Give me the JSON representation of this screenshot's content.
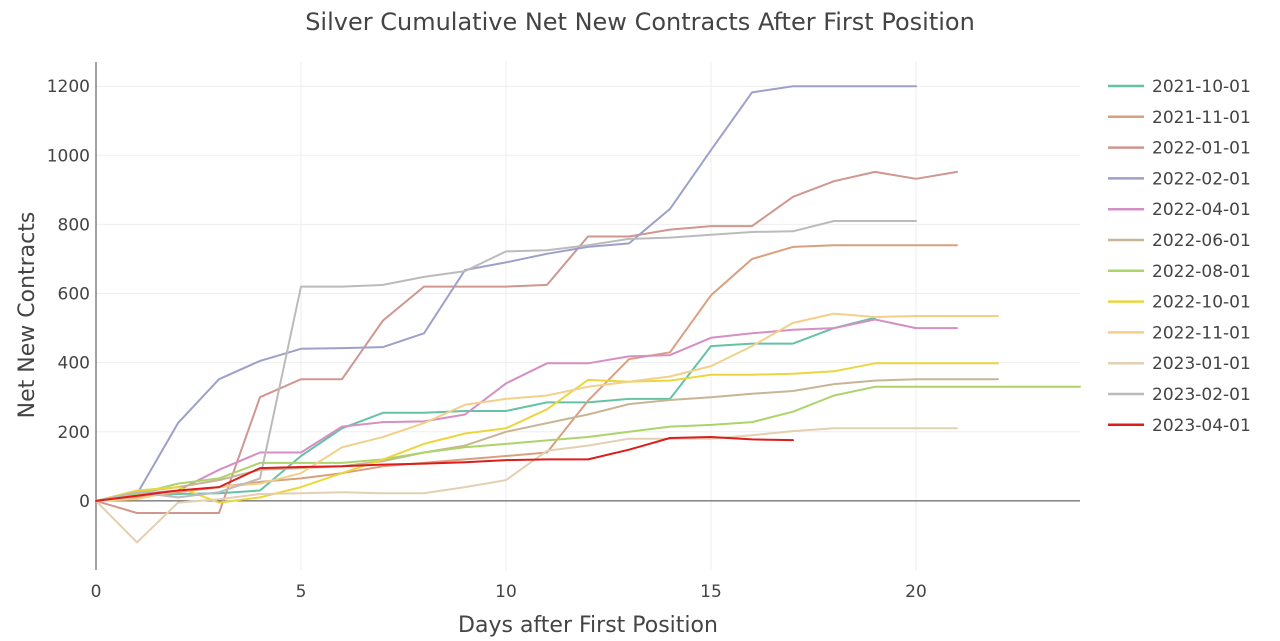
{
  "chart_data": {
    "type": "line",
    "title": "Silver Cumulative Net New Contracts After First Position",
    "xlabel": "Days after First Position",
    "ylabel": "Net New Contracts",
    "xlim": [
      0,
      24
    ],
    "ylim": [
      -200,
      1270
    ],
    "xticks": [
      0,
      5,
      10,
      15,
      20
    ],
    "yticks": [
      0,
      200,
      400,
      600,
      800,
      1000,
      1200
    ],
    "grid": true,
    "legend_position": "right",
    "series": [
      {
        "name": "2021-10-01",
        "color": "#66c2a5",
        "x": [
          0,
          1,
          2,
          3,
          4,
          5,
          6,
          7,
          8,
          9,
          10,
          11,
          12,
          13,
          14,
          15,
          16,
          17,
          18,
          19
        ],
        "values": [
          0,
          15,
          20,
          22,
          30,
          130,
          210,
          255,
          255,
          260,
          260,
          285,
          285,
          295,
          295,
          448,
          455,
          455,
          500,
          530
        ]
      },
      {
        "name": "2021-11-01",
        "color": "#d9a07f",
        "x": [
          0,
          1,
          2,
          3,
          4,
          5,
          6,
          7,
          8,
          9,
          10,
          11,
          12,
          13,
          14,
          15,
          16,
          17,
          18,
          19,
          20,
          21
        ],
        "values": [
          0,
          10,
          25,
          40,
          55,
          65,
          80,
          100,
          110,
          120,
          130,
          140,
          290,
          410,
          430,
          595,
          700,
          735,
          740,
          740,
          740,
          740
        ]
      },
      {
        "name": "2022-01-01",
        "color": "#d0968f",
        "x": [
          0,
          1,
          2,
          3,
          4,
          5,
          6,
          7,
          8,
          9,
          10,
          11,
          12,
          13,
          14,
          15,
          16,
          17,
          18,
          19,
          20,
          21
        ],
        "values": [
          0,
          -35,
          -35,
          -35,
          300,
          352,
          352,
          522,
          620,
          620,
          620,
          625,
          765,
          765,
          785,
          795,
          795,
          880,
          925,
          952,
          932,
          952
        ]
      },
      {
        "name": "2022-02-01",
        "color": "#9da0c9",
        "x": [
          0,
          1,
          2,
          3,
          4,
          5,
          6,
          7,
          8,
          9,
          10,
          11,
          12,
          13,
          14,
          15,
          16,
          17,
          18,
          19,
          20
        ],
        "values": [
          0,
          20,
          225,
          352,
          405,
          440,
          442,
          445,
          485,
          668,
          690,
          715,
          735,
          745,
          845,
          1015,
          1182,
          1200,
          1200,
          1200,
          1200
        ]
      },
      {
        "name": "2022-04-01",
        "color": "#d48fc4",
        "x": [
          0,
          1,
          2,
          3,
          4,
          5,
          6,
          7,
          8,
          9,
          10,
          11,
          12,
          13,
          14,
          15,
          16,
          17,
          18,
          19,
          20,
          21
        ],
        "values": [
          0,
          20,
          30,
          90,
          140,
          140,
          215,
          228,
          230,
          250,
          340,
          398,
          398,
          418,
          422,
          472,
          485,
          495,
          500,
          525,
          500,
          500
        ]
      },
      {
        "name": "2022-06-01",
        "color": "#c8b594",
        "x": [
          0,
          1,
          2,
          3,
          4,
          5,
          6,
          7,
          8,
          9,
          10,
          11,
          12,
          13,
          14,
          15,
          16,
          17,
          18,
          19,
          20,
          21,
          22
        ],
        "values": [
          0,
          25,
          40,
          60,
          90,
          95,
          100,
          115,
          140,
          160,
          200,
          225,
          250,
          280,
          292,
          300,
          310,
          318,
          338,
          348,
          352,
          352,
          352
        ]
      },
      {
        "name": "2022-08-01",
        "color": "#abd46a",
        "x": [
          0,
          1,
          2,
          3,
          4,
          5,
          6,
          7,
          8,
          9,
          10,
          11,
          12,
          13,
          14,
          15,
          16,
          17,
          18,
          19,
          20,
          21,
          22,
          23,
          24
        ],
        "values": [
          0,
          20,
          50,
          65,
          110,
          110,
          110,
          120,
          140,
          155,
          165,
          175,
          185,
          200,
          215,
          220,
          228,
          258,
          305,
          330,
          330,
          330,
          330,
          330,
          330
        ]
      },
      {
        "name": "2022-10-01",
        "color": "#ecd63e",
        "x": [
          0,
          1,
          2,
          3,
          4,
          5,
          6,
          7,
          8,
          9,
          10,
          11,
          12,
          13,
          14,
          15,
          16,
          17,
          18,
          19,
          20,
          21,
          22
        ],
        "values": [
          0,
          30,
          40,
          -5,
          10,
          40,
          80,
          120,
          165,
          195,
          210,
          265,
          350,
          345,
          348,
          365,
          365,
          368,
          375,
          398,
          398,
          398,
          398
        ]
      },
      {
        "name": "2022-11-01",
        "color": "#f2d08a",
        "x": [
          0,
          1,
          2,
          3,
          4,
          5,
          6,
          7,
          8,
          9,
          10,
          11,
          12,
          13,
          14,
          15,
          16,
          17,
          18,
          19,
          20,
          21,
          22
        ],
        "values": [
          0,
          5,
          30,
          40,
          50,
          80,
          155,
          185,
          225,
          278,
          295,
          305,
          330,
          345,
          360,
          390,
          448,
          515,
          542,
          532,
          535,
          535,
          535
        ]
      },
      {
        "name": "2023-01-01",
        "color": "#e3cfb2",
        "x": [
          0,
          1,
          2,
          3,
          4,
          5,
          6,
          7,
          8,
          9,
          10,
          11,
          12,
          13,
          14,
          15,
          16,
          17,
          18,
          19,
          20,
          21
        ],
        "values": [
          0,
          -120,
          -5,
          5,
          20,
          22,
          25,
          22,
          22,
          40,
          60,
          145,
          160,
          180,
          180,
          180,
          190,
          202,
          210,
          210,
          210,
          210
        ]
      },
      {
        "name": "2023-02-01",
        "color": "#bbbbbb",
        "x": [
          0,
          1,
          2,
          3,
          4,
          5,
          6,
          7,
          8,
          9,
          10,
          11,
          12,
          13,
          14,
          15,
          16,
          17,
          18,
          19,
          20
        ],
        "values": [
          0,
          25,
          10,
          25,
          65,
          620,
          620,
          625,
          648,
          665,
          722,
          725,
          740,
          758,
          762,
          770,
          778,
          780,
          810,
          810,
          810
        ]
      },
      {
        "name": "2023-04-01",
        "color": "#dd1c1c",
        "x": [
          0,
          1,
          2,
          3,
          4,
          5,
          6,
          7,
          8,
          9,
          10,
          11,
          12,
          13,
          14,
          15,
          16,
          17
        ],
        "values": [
          0,
          15,
          30,
          40,
          95,
          98,
          100,
          105,
          108,
          112,
          118,
          120,
          120,
          148,
          182,
          185,
          178,
          176
        ]
      }
    ]
  }
}
